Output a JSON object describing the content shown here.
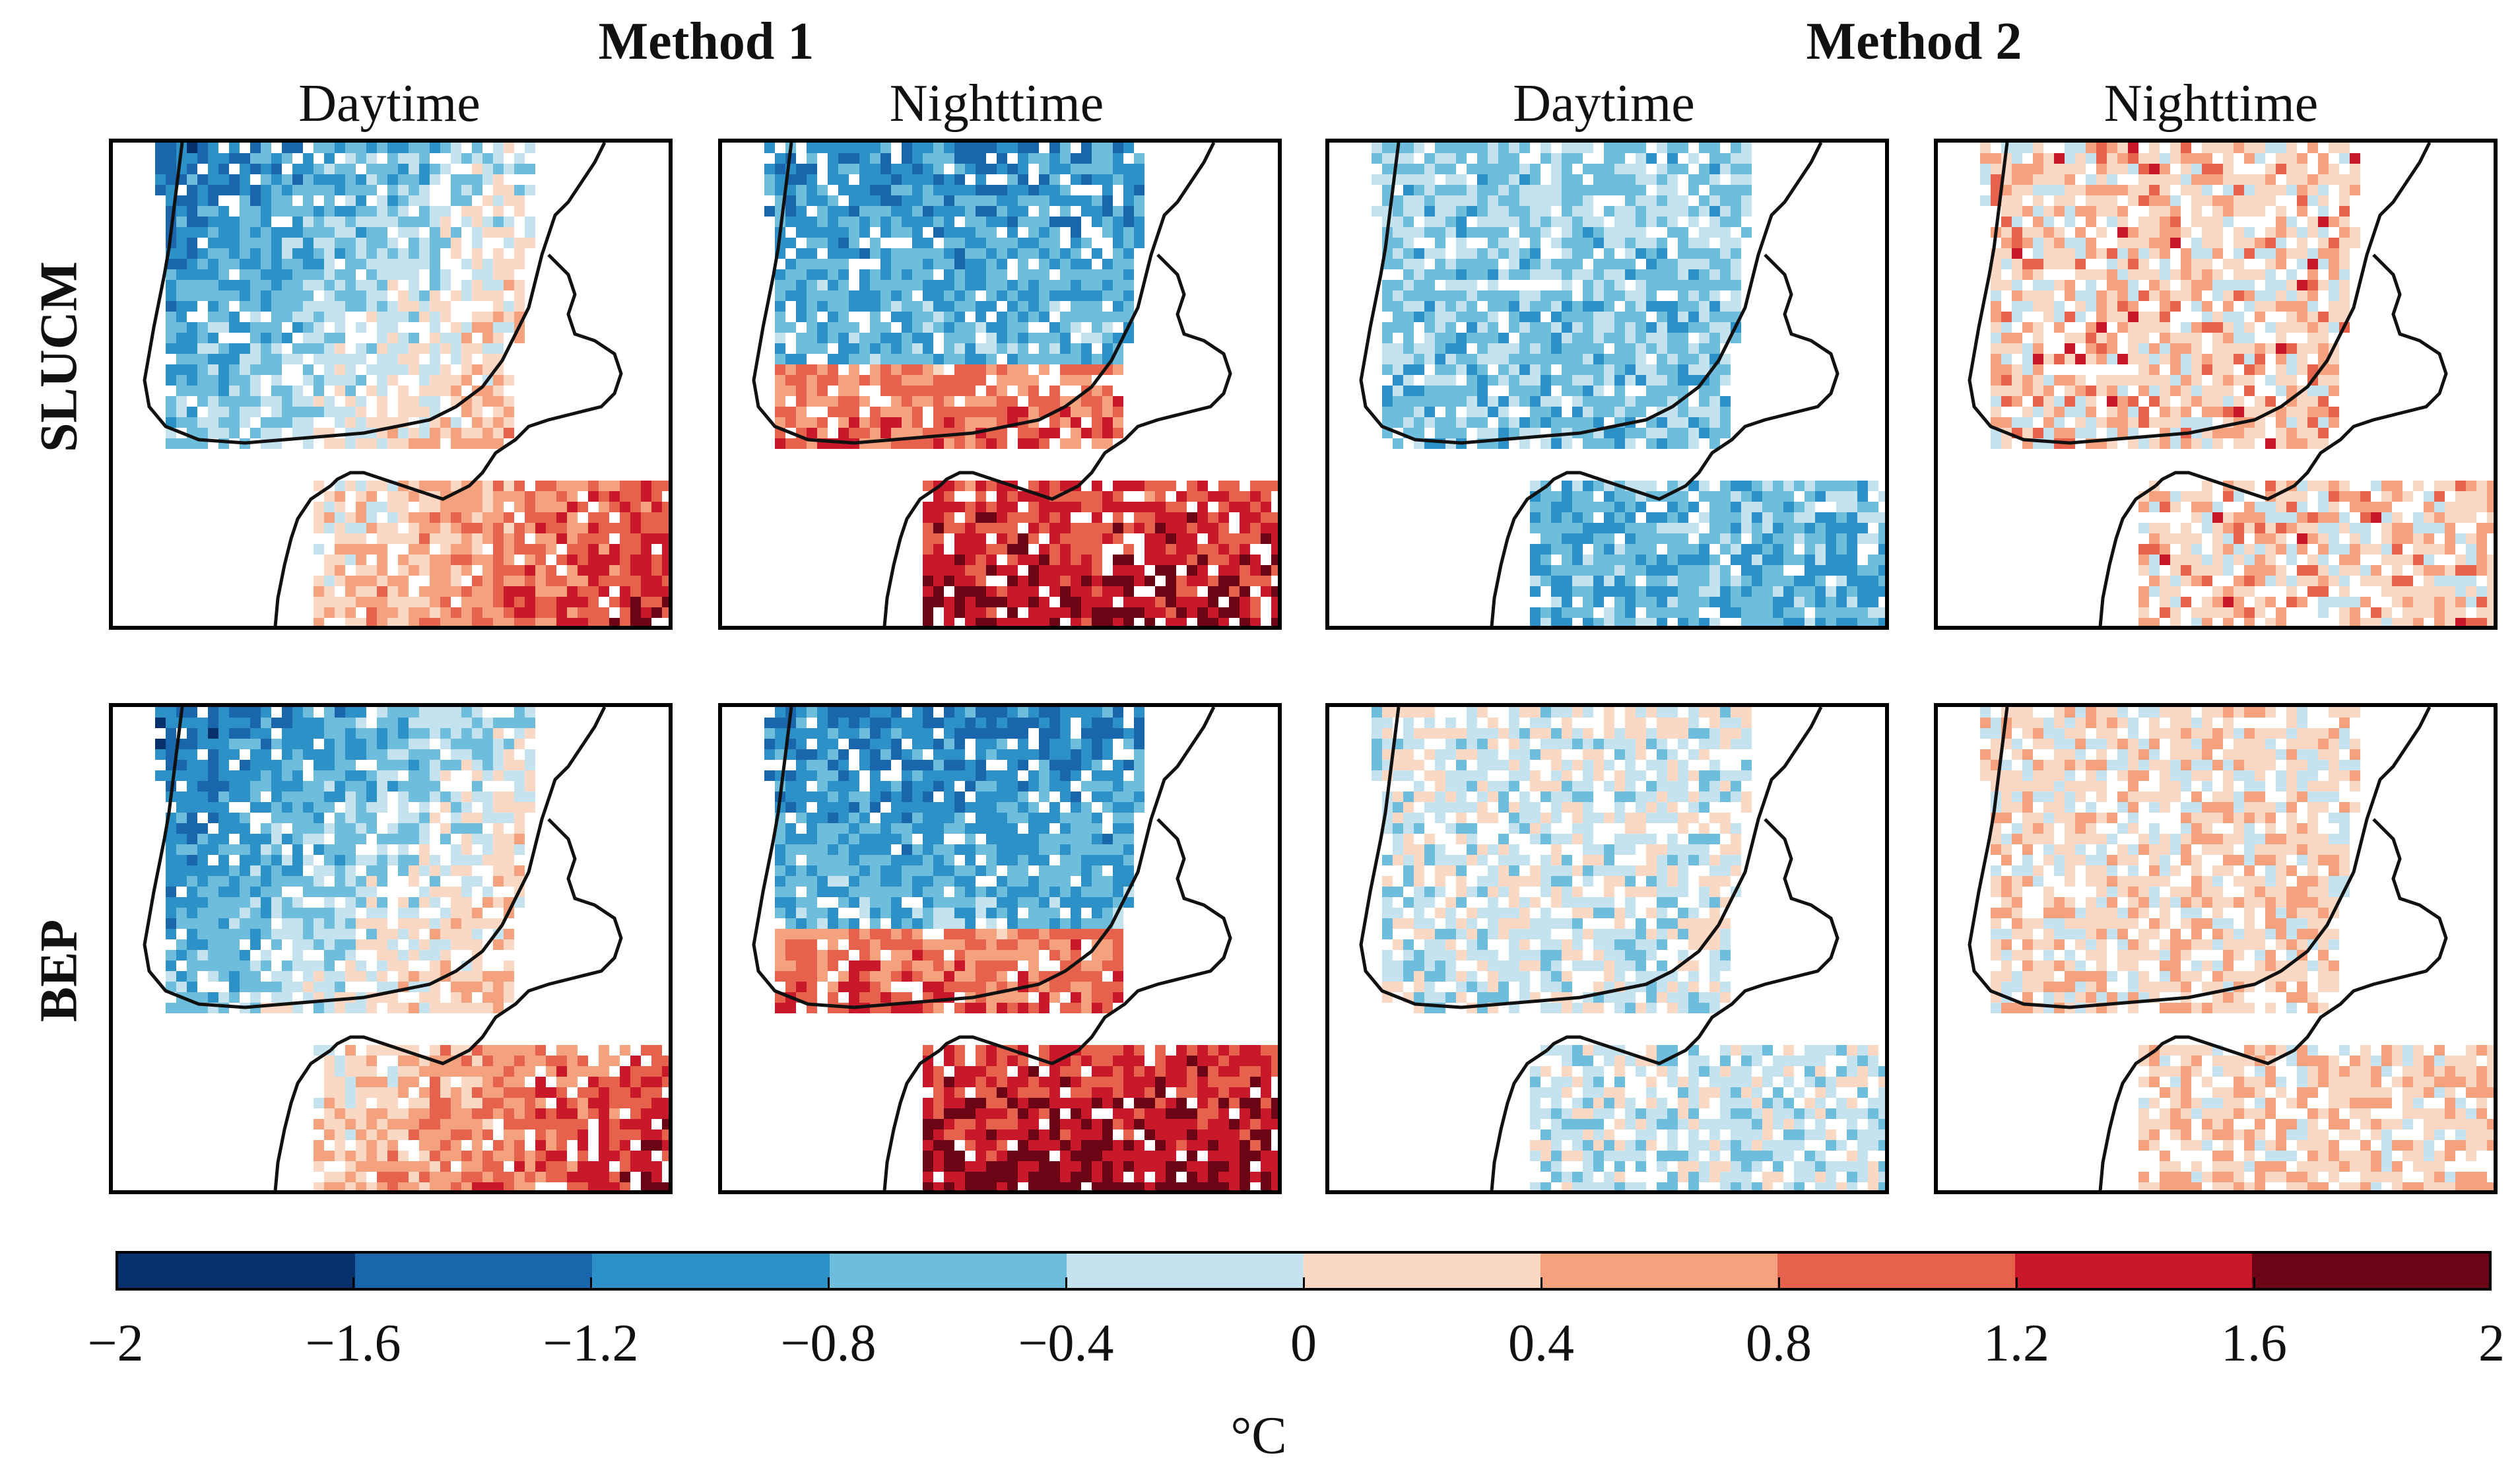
{
  "methods": [
    {
      "label": "Method 1"
    },
    {
      "label": "Method 2"
    }
  ],
  "columns": [
    {
      "label": "Daytime",
      "method": "Method 1"
    },
    {
      "label": "Nighttime",
      "method": "Method 1"
    },
    {
      "label": "Daytime",
      "method": "Method 2"
    },
    {
      "label": "Nighttime",
      "method": "Method 2"
    }
  ],
  "rows": [
    {
      "label": "SLUCM"
    },
    {
      "label": "BEP"
    }
  ],
  "panels": [
    {
      "row": "SLUCM",
      "column": "Method 1 Daytime",
      "dominant": "mixed: negative north-west, positive south-east",
      "intensity": 0.75
    },
    {
      "row": "SLUCM",
      "column": "Method 1 Nighttime",
      "dominant": "strong positive south, negative north",
      "intensity": 0.9
    },
    {
      "row": "SLUCM",
      "column": "Method 2 Daytime",
      "dominant": "weak to moderate negative",
      "intensity": 0.5
    },
    {
      "row": "SLUCM",
      "column": "Method 2 Nighttime",
      "dominant": "weak positive with local strong positive",
      "intensity": 0.55
    },
    {
      "row": "BEP",
      "column": "Method 1 Daytime",
      "dominant": "mixed: negative north-west, positive south-east",
      "intensity": 0.8
    },
    {
      "row": "BEP",
      "column": "Method 1 Nighttime",
      "dominant": "strong positive south, negative north",
      "intensity": 0.95
    },
    {
      "row": "BEP",
      "column": "Method 2 Daytime",
      "dominant": "weak negative",
      "intensity": 0.3
    },
    {
      "row": "BEP",
      "column": "Method 2 Nighttime",
      "dominant": "weak positive",
      "intensity": 0.45
    }
  ],
  "colorbar": {
    "ticks": [
      "−2",
      "−1.6",
      "−1.2",
      "−0.8",
      "−0.4",
      "0",
      "0.4",
      "0.8",
      "1.2",
      "1.6",
      "2"
    ],
    "range": [
      -2,
      2
    ],
    "colors": [
      "#08306b",
      "#1a66ad",
      "#2b91c6",
      "#6fbddc",
      "#c5e3ef",
      "#fbd8c4",
      "#f4a27e",
      "#e7624d",
      "#c8182a",
      "#6b0515"
    ],
    "unit": "°C"
  }
}
